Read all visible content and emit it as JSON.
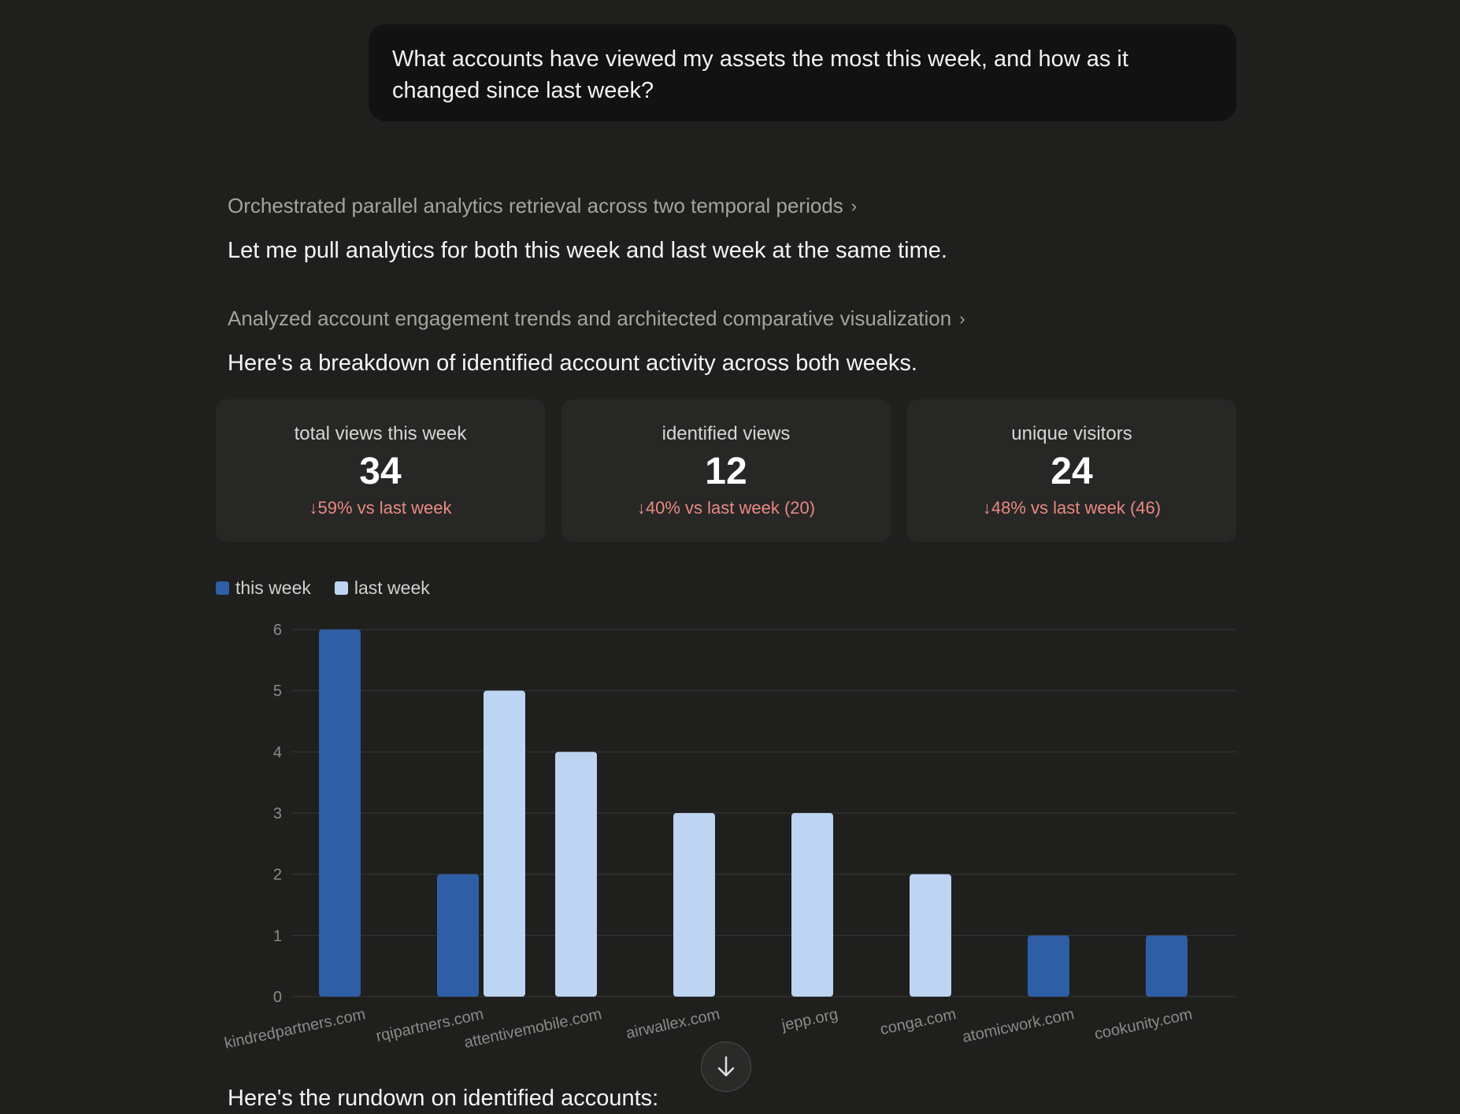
{
  "user_message": "What accounts have viewed my assets the most this week, and how as it changed since last week?",
  "thinking_1": "Orchestrated parallel analytics retrieval across two temporal periods",
  "message_1": "Let me pull analytics for both this week and last week at the same time.",
  "thinking_2": "Analyzed account engagement trends and architected comparative visualization",
  "message_2": "Here's a breakdown of identified account activity across both weeks.",
  "stats": [
    {
      "label": "total views this week",
      "value": "34",
      "delta": "59% vs last week"
    },
    {
      "label": "identified views",
      "value": "12",
      "delta": "40% vs last week (20)"
    },
    {
      "label": "unique visitors",
      "value": "24",
      "delta": "48% vs last week (46)"
    }
  ],
  "message_3": "Here's the rundown on identified accounts:",
  "icons": {
    "expand": "chevron-right-icon",
    "delta": "arrow-down-icon",
    "scroll": "arrow-down-icon"
  },
  "chart_data": {
    "type": "bar",
    "categories": [
      "kindredpartners.com",
      "rqipartners.com",
      "attentivemobile.com",
      "airwallex.com",
      "jepp.org",
      "conga.com",
      "atomicwork.com",
      "cookunity.com"
    ],
    "series": [
      {
        "name": "this week",
        "color": "#2e5fa6",
        "values": [
          6,
          2,
          0,
          0,
          0,
          0,
          1,
          1
        ]
      },
      {
        "name": "last week",
        "color": "#bdd4f2",
        "values": [
          0,
          5,
          4,
          3,
          3,
          2,
          0,
          0
        ]
      }
    ],
    "ylim": [
      0,
      6
    ],
    "yticks": [
      0,
      1,
      2,
      3,
      4,
      5,
      6
    ],
    "grid": true,
    "legend": "top-left"
  }
}
